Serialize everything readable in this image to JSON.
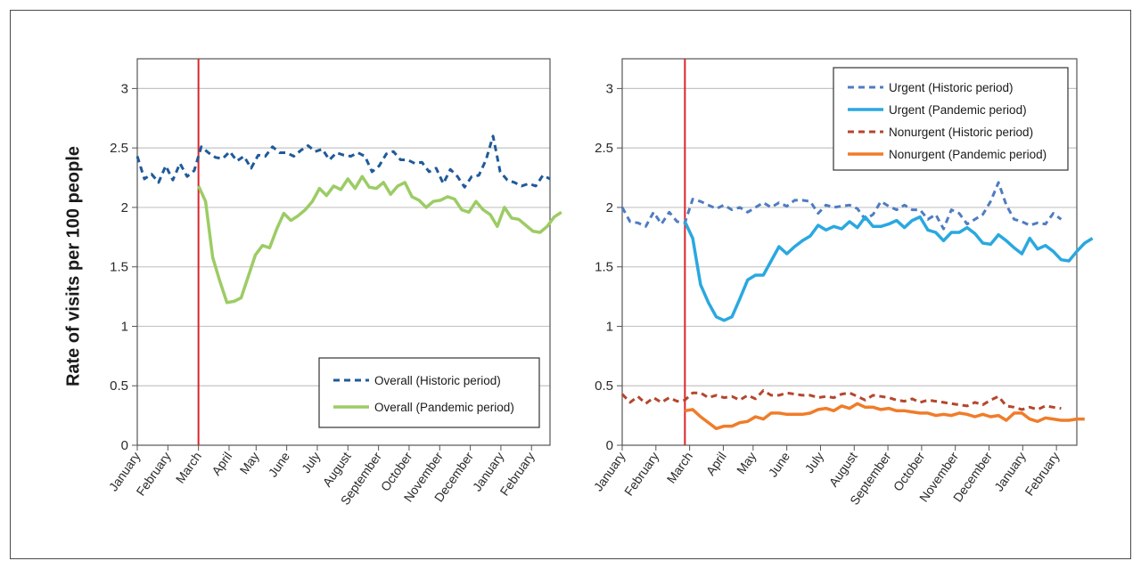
{
  "y_axis_label": "Rate of visits per 100 people",
  "chart_data": [
    {
      "type": "line",
      "ylim": [
        0,
        3.25
      ],
      "yticks": [
        0,
        0.5,
        1,
        1.5,
        2,
        2.5,
        3
      ],
      "ytick_labels": [
        "0",
        "0.5",
        "1",
        "1.5",
        "2",
        "2.5",
        "3"
      ],
      "xlim": [
        0,
        58
      ],
      "month_labels": [
        "January",
        "February",
        "March",
        "April",
        "May",
        "June",
        "July",
        "August",
        "September",
        "October",
        "November",
        "December",
        "January",
        "February"
      ],
      "month_positions": [
        0,
        4.3,
        8.6,
        12.9,
        16.7,
        21,
        25.3,
        29.6,
        33.9,
        38.2,
        42.5,
        46.8,
        51.1,
        55.4
      ],
      "event_line_x": 8.6,
      "event_line_color": "#d9262c",
      "legend_position": "bottom-right",
      "grid": "horizontal",
      "series": [
        {
          "name": "Overall (Historic period)",
          "style": "dashed",
          "color": "#1f5a9a",
          "x_start": 0,
          "values": [
            2.43,
            2.24,
            2.28,
            2.21,
            2.35,
            2.23,
            2.37,
            2.26,
            2.31,
            2.51,
            2.46,
            2.42,
            2.41,
            2.47,
            2.39,
            2.43,
            2.33,
            2.44,
            2.43,
            2.51,
            2.46,
            2.46,
            2.43,
            2.48,
            2.52,
            2.47,
            2.49,
            2.4,
            2.46,
            2.44,
            2.43,
            2.46,
            2.43,
            2.3,
            2.35,
            2.45,
            2.47,
            2.4,
            2.4,
            2.37,
            2.38,
            2.3,
            2.33,
            2.2,
            2.32,
            2.26,
            2.17,
            2.26,
            2.27,
            2.4,
            2.6,
            2.3,
            2.23,
            2.21,
            2.18,
            2.2,
            2.18,
            2.27,
            2.24
          ]
        },
        {
          "name": "Overall (Pandemic period)",
          "style": "solid",
          "color": "#9ccc65",
          "x_start": 8.6,
          "values": [
            2.18,
            2.05,
            1.58,
            1.38,
            1.2,
            1.21,
            1.24,
            1.42,
            1.6,
            1.68,
            1.66,
            1.82,
            1.95,
            1.89,
            1.93,
            1.98,
            2.05,
            2.16,
            2.1,
            2.18,
            2.15,
            2.24,
            2.16,
            2.26,
            2.17,
            2.16,
            2.21,
            2.11,
            2.18,
            2.21,
            2.09,
            2.06,
            2.0,
            2.05,
            2.06,
            2.09,
            2.07,
            1.98,
            1.96,
            2.05,
            1.98,
            1.94,
            1.84,
            2.0,
            1.91,
            1.9,
            1.85,
            1.8,
            1.79,
            1.84,
            1.92,
            1.96
          ]
        }
      ]
    },
    {
      "type": "line",
      "ylim": [
        0,
        3.25
      ],
      "yticks": [
        0,
        0.5,
        1,
        1.5,
        2,
        2.5,
        3
      ],
      "ytick_labels": [
        "0",
        "0.5",
        "1",
        "1.5",
        "2",
        "2.5",
        "3"
      ],
      "xlim": [
        0,
        58
      ],
      "month_labels": [
        "January",
        "February",
        "March",
        "April",
        "May",
        "June",
        "July",
        "August",
        "September",
        "October",
        "November",
        "December",
        "January",
        "February"
      ],
      "month_positions": [
        0,
        4.3,
        8.6,
        12.9,
        16.7,
        21,
        25.3,
        29.6,
        33.9,
        38.2,
        42.5,
        46.8,
        51.1,
        55.4
      ],
      "event_line_x": 8.0,
      "event_line_color": "#d9262c",
      "legend_position": "top-right",
      "grid": "horizontal",
      "series": [
        {
          "name": "Urgent (Historic period)",
          "style": "dashed",
          "color": "#4f7cc2",
          "x_start": 0,
          "values": [
            2.0,
            1.88,
            1.87,
            1.84,
            1.96,
            1.86,
            1.96,
            1.88,
            1.87,
            2.07,
            2.05,
            2.02,
            1.99,
            2.02,
            1.98,
            2.0,
            1.96,
            2.0,
            2.04,
            2.0,
            2.04,
            2.01,
            2.06,
            2.06,
            2.05,
            1.95,
            2.02,
            2.0,
            2.01,
            2.02,
            1.99,
            1.9,
            1.94,
            2.05,
            2.01,
            1.98,
            2.02,
            1.98,
            1.98,
            1.9,
            1.94,
            1.82,
            1.98,
            1.95,
            1.86,
            1.9,
            1.94,
            2.05,
            2.21,
            2.02,
            1.9,
            1.88,
            1.85,
            1.87,
            1.86,
            1.95,
            1.9
          ]
        },
        {
          "name": "Urgent (Pandemic period)",
          "style": "solid",
          "color": "#2aa8e0",
          "x_start": 8.0,
          "values": [
            1.88,
            1.74,
            1.35,
            1.2,
            1.08,
            1.05,
            1.08,
            1.23,
            1.39,
            1.43,
            1.43,
            1.55,
            1.67,
            1.61,
            1.67,
            1.72,
            1.76,
            1.85,
            1.81,
            1.84,
            1.82,
            1.88,
            1.83,
            1.92,
            1.84,
            1.84,
            1.86,
            1.89,
            1.83,
            1.89,
            1.92,
            1.81,
            1.79,
            1.72,
            1.79,
            1.79,
            1.83,
            1.78,
            1.7,
            1.69,
            1.77,
            1.72,
            1.66,
            1.61,
            1.74,
            1.65,
            1.68,
            1.63,
            1.56,
            1.55,
            1.63,
            1.7,
            1.74
          ]
        },
        {
          "name": "Nonurgent (Historic period)",
          "style": "dashed",
          "color": "#b5462c",
          "x_start": 0,
          "values": [
            0.43,
            0.36,
            0.41,
            0.35,
            0.4,
            0.36,
            0.4,
            0.37,
            0.38,
            0.44,
            0.44,
            0.4,
            0.42,
            0.4,
            0.41,
            0.38,
            0.42,
            0.39,
            0.46,
            0.42,
            0.42,
            0.44,
            0.43,
            0.42,
            0.42,
            0.4,
            0.41,
            0.4,
            0.43,
            0.44,
            0.41,
            0.38,
            0.42,
            0.41,
            0.4,
            0.38,
            0.37,
            0.39,
            0.36,
            0.38,
            0.37,
            0.36,
            0.35,
            0.34,
            0.33,
            0.36,
            0.34,
            0.38,
            0.41,
            0.33,
            0.32,
            0.3,
            0.32,
            0.3,
            0.33,
            0.32,
            0.31
          ]
        },
        {
          "name": "Nonurgent (Pandemic period)",
          "style": "solid",
          "color": "#f07c2a",
          "x_start": 8.0,
          "values": [
            0.29,
            0.3,
            0.24,
            0.19,
            0.14,
            0.16,
            0.16,
            0.19,
            0.2,
            0.24,
            0.22,
            0.27,
            0.27,
            0.26,
            0.26,
            0.26,
            0.27,
            0.3,
            0.31,
            0.29,
            0.33,
            0.31,
            0.35,
            0.32,
            0.32,
            0.3,
            0.31,
            0.29,
            0.29,
            0.28,
            0.27,
            0.27,
            0.25,
            0.26,
            0.25,
            0.27,
            0.26,
            0.24,
            0.26,
            0.24,
            0.25,
            0.21,
            0.27,
            0.27,
            0.22,
            0.2,
            0.23,
            0.22,
            0.21,
            0.21,
            0.22,
            0.22
          ]
        }
      ]
    }
  ]
}
